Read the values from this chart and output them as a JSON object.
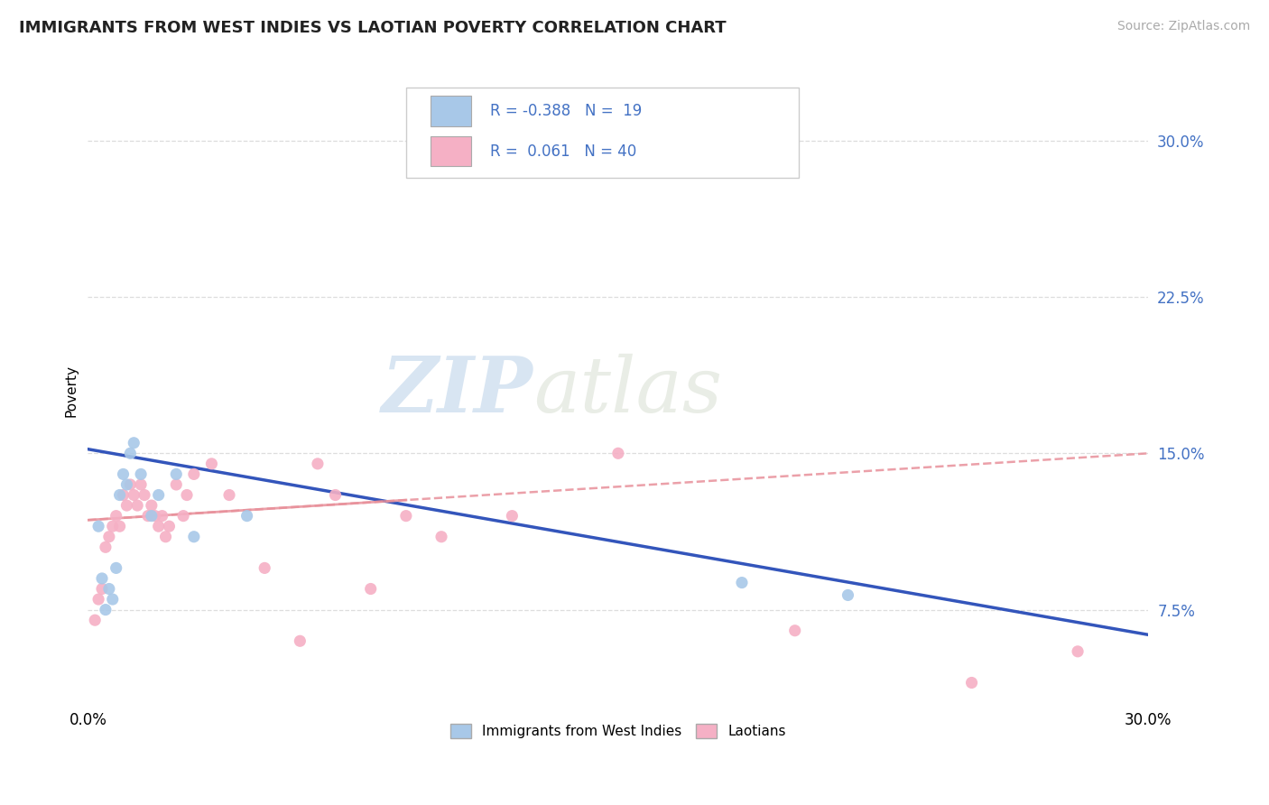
{
  "title": "IMMIGRANTS FROM WEST INDIES VS LAOTIAN POVERTY CORRELATION CHART",
  "source_text": "Source: ZipAtlas.com",
  "ylabel": "Poverty",
  "xlim": [
    0.0,
    0.3
  ],
  "ylim": [
    0.03,
    0.33
  ],
  "yticks": [
    0.075,
    0.15,
    0.225,
    0.3
  ],
  "ytick_labels": [
    "7.5%",
    "15.0%",
    "22.5%",
    "30.0%"
  ],
  "blue_R": -0.388,
  "blue_N": 19,
  "pink_R": 0.061,
  "pink_N": 40,
  "blue_color": "#A8C8E8",
  "pink_color": "#F5B0C5",
  "blue_line_color": "#3355BB",
  "pink_line_color": "#E8909A",
  "watermark_zip": "ZIP",
  "watermark_atlas": "atlas",
  "legend_label_blue": "Immigrants from West Indies",
  "legend_label_pink": "Laotians",
  "blue_scatter_x": [
    0.003,
    0.004,
    0.005,
    0.006,
    0.007,
    0.008,
    0.009,
    0.01,
    0.011,
    0.012,
    0.013,
    0.015,
    0.018,
    0.02,
    0.025,
    0.03,
    0.045,
    0.185,
    0.215
  ],
  "blue_scatter_y": [
    0.115,
    0.09,
    0.075,
    0.085,
    0.08,
    0.095,
    0.13,
    0.14,
    0.135,
    0.15,
    0.155,
    0.14,
    0.12,
    0.13,
    0.14,
    0.11,
    0.12,
    0.088,
    0.082
  ],
  "pink_scatter_x": [
    0.002,
    0.003,
    0.004,
    0.005,
    0.006,
    0.007,
    0.008,
    0.009,
    0.01,
    0.011,
    0.012,
    0.013,
    0.014,
    0.015,
    0.016,
    0.017,
    0.018,
    0.019,
    0.02,
    0.021,
    0.022,
    0.023,
    0.025,
    0.027,
    0.028,
    0.03,
    0.035,
    0.04,
    0.05,
    0.06,
    0.065,
    0.07,
    0.08,
    0.09,
    0.1,
    0.12,
    0.15,
    0.2,
    0.25,
    0.28
  ],
  "pink_scatter_y": [
    0.07,
    0.08,
    0.085,
    0.105,
    0.11,
    0.115,
    0.12,
    0.115,
    0.13,
    0.125,
    0.135,
    0.13,
    0.125,
    0.135,
    0.13,
    0.12,
    0.125,
    0.12,
    0.115,
    0.12,
    0.11,
    0.115,
    0.135,
    0.12,
    0.13,
    0.14,
    0.145,
    0.13,
    0.095,
    0.06,
    0.145,
    0.13,
    0.085,
    0.12,
    0.11,
    0.12,
    0.15,
    0.065,
    0.04,
    0.055
  ],
  "grid_color": "#DDDDDD",
  "bg_color": "#FFFFFF",
  "title_fontsize": 13,
  "tick_label_color": "#4472C4",
  "blue_line_start_y": 0.152,
  "blue_line_end_y": 0.063,
  "pink_line_start_y": 0.118,
  "pink_line_end_y": 0.15
}
